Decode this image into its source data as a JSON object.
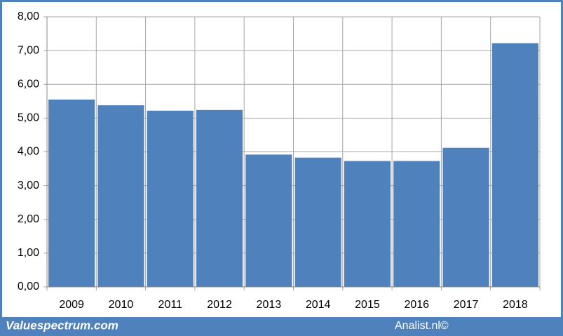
{
  "chart_data": {
    "type": "bar",
    "categories": [
      "2009",
      "2010",
      "2011",
      "2012",
      "2013",
      "2014",
      "2015",
      "2016",
      "2017",
      "2018"
    ],
    "values": [
      5.55,
      5.38,
      5.22,
      5.24,
      3.92,
      3.83,
      3.73,
      3.73,
      4.12,
      7.22
    ],
    "color": "#4f81bd",
    "ylim": [
      0,
      8
    ],
    "yticks": [
      {
        "value": 0,
        "label": "0,00"
      },
      {
        "value": 1,
        "label": "1,00"
      },
      {
        "value": 2,
        "label": "2,00"
      },
      {
        "value": 3,
        "label": "3,00"
      },
      {
        "value": 4,
        "label": "4,00"
      },
      {
        "value": 5,
        "label": "5,00"
      },
      {
        "value": 6,
        "label": "6,00"
      },
      {
        "value": 7,
        "label": "7,00"
      },
      {
        "value": 8,
        "label": "8,00"
      }
    ],
    "grid": true
  },
  "footer": {
    "left": "Valuespectrum.com",
    "right": "Analist.nl©"
  }
}
